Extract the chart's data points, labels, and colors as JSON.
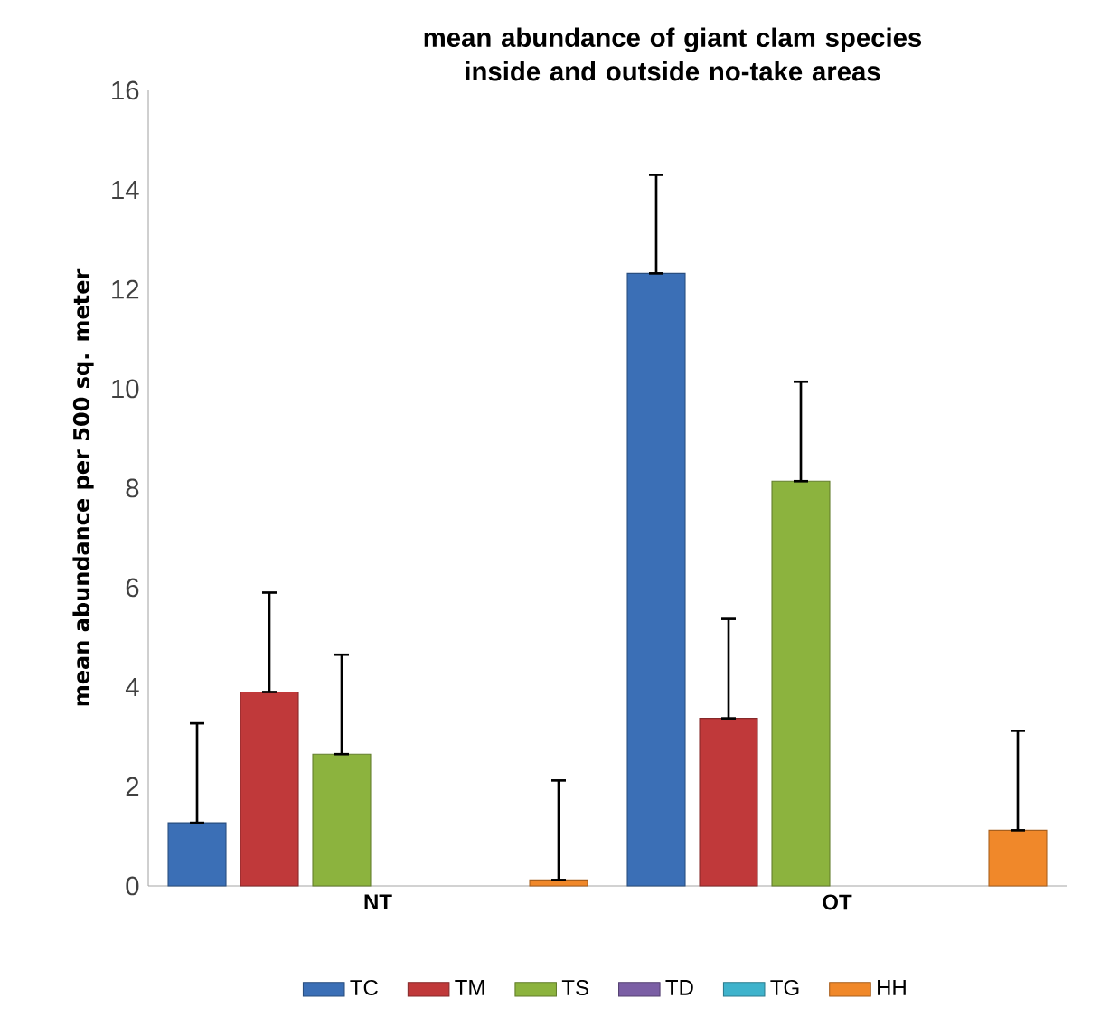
{
  "chart_data": {
    "type": "bar",
    "title": "mean abundance of giant clam species inside and outside no-take areas",
    "ylabel": "mean abundance per 500 sq. meter",
    "categories": [
      "NT",
      "OT"
    ],
    "series": [
      {
        "name": "TC",
        "color": "#3b6fb6",
        "values": [
          1.27,
          12.32
        ],
        "errors": [
          [
            1.27,
            3.27
          ],
          [
            12.32,
            14.3
          ]
        ]
      },
      {
        "name": "TM",
        "color": "#c0393a",
        "values": [
          3.9,
          3.37
        ],
        "errors": [
          [
            3.9,
            5.9
          ],
          [
            3.37,
            5.37
          ]
        ]
      },
      {
        "name": "TS",
        "color": "#8cb33e",
        "values": [
          2.65,
          8.14
        ],
        "errors": [
          [
            2.65,
            4.65
          ],
          [
            8.14,
            10.14
          ]
        ]
      },
      {
        "name": "TD",
        "color": "#7b5fa5",
        "values": [
          null,
          null
        ]
      },
      {
        "name": "TG",
        "color": "#3fb3cc",
        "values": [
          null,
          null
        ]
      },
      {
        "name": "HH",
        "color": "#f0882a",
        "values": [
          0.12,
          1.12
        ],
        "errors": [
          [
            0.12,
            2.12
          ],
          [
            1.12,
            3.12
          ]
        ]
      }
    ],
    "ylim": [
      0,
      16
    ],
    "yticks": [
      0,
      2,
      4,
      6,
      8,
      10,
      12,
      14,
      16
    ],
    "legend": "bottom"
  }
}
